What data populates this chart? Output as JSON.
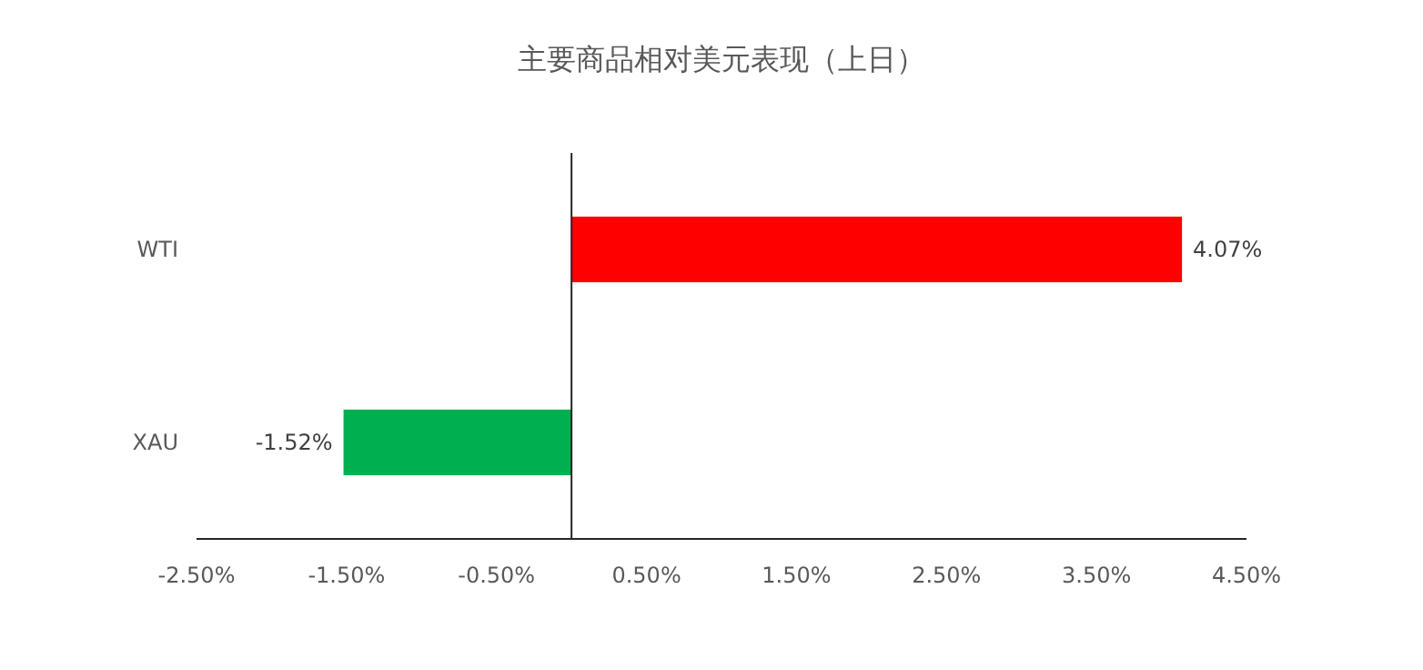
{
  "chart_data": {
    "type": "bar",
    "orientation": "horizontal",
    "title": "主要商品相对美元表现（上日）",
    "categories": [
      "WTI",
      "XAU"
    ],
    "values": [
      4.07,
      -1.52
    ],
    "colors": [
      "#ff0000",
      "#00b050"
    ],
    "value_labels": [
      "4.07%",
      "-1.52%"
    ],
    "xlim": [
      -2.5,
      4.5
    ],
    "xticks": [
      {
        "value": -2.5,
        "label": "-2.50%"
      },
      {
        "value": -1.5,
        "label": "-1.50%"
      },
      {
        "value": -0.5,
        "label": "-0.50%"
      },
      {
        "value": 0.5,
        "label": "0.50%"
      },
      {
        "value": 1.5,
        "label": "1.50%"
      },
      {
        "value": 2.5,
        "label": "2.50%"
      },
      {
        "value": 3.5,
        "label": "3.50%"
      },
      {
        "value": 4.5,
        "label": "4.50%"
      }
    ]
  }
}
